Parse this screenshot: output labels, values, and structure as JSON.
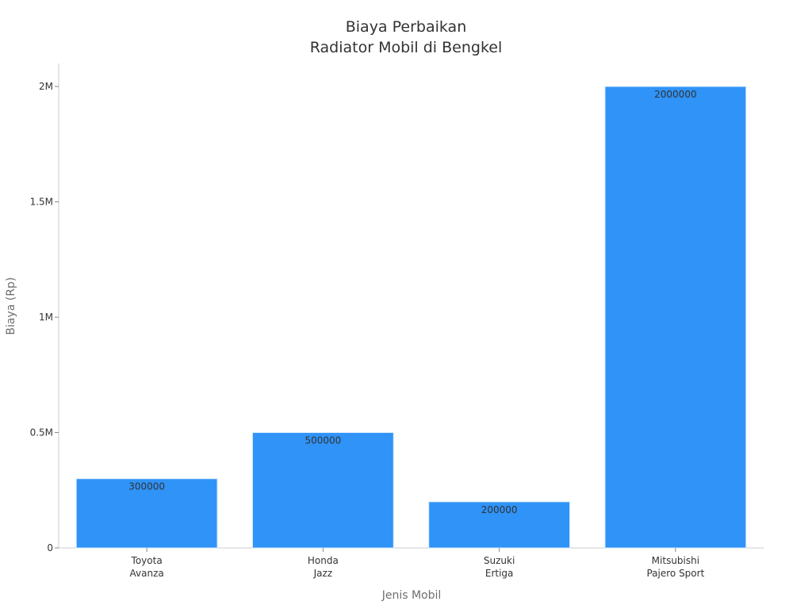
{
  "chart_data": {
    "type": "bar",
    "title": [
      "Biaya Perbaikan",
      "Radiator Mobil di Bengkel"
    ],
    "xlabel": "Jenis Mobil",
    "ylabel": "Biaya (Rp)",
    "categories": [
      [
        "Toyota",
        "Avanza"
      ],
      [
        "Honda",
        "Jazz"
      ],
      [
        "Suzuki",
        "Ertiga"
      ],
      [
        "Mitsubishi",
        "Pajero Sport"
      ]
    ],
    "values": [
      300000,
      500000,
      200000,
      2000000
    ],
    "data_labels": [
      "300000",
      "500000",
      "200000",
      "2000000"
    ],
    "ylim": [
      0,
      2100000
    ],
    "yticks": [
      0,
      500000,
      1000000,
      1500000,
      2000000
    ],
    "ytick_labels": [
      "0",
      "0.5M",
      "1M",
      "1.5M",
      "2M"
    ],
    "grid": false,
    "legend": "none",
    "colors": {
      "bar": "#2f93f7",
      "axis": "#cccccc",
      "text": "#333333",
      "axis_title": "#6e6e6e"
    }
  }
}
